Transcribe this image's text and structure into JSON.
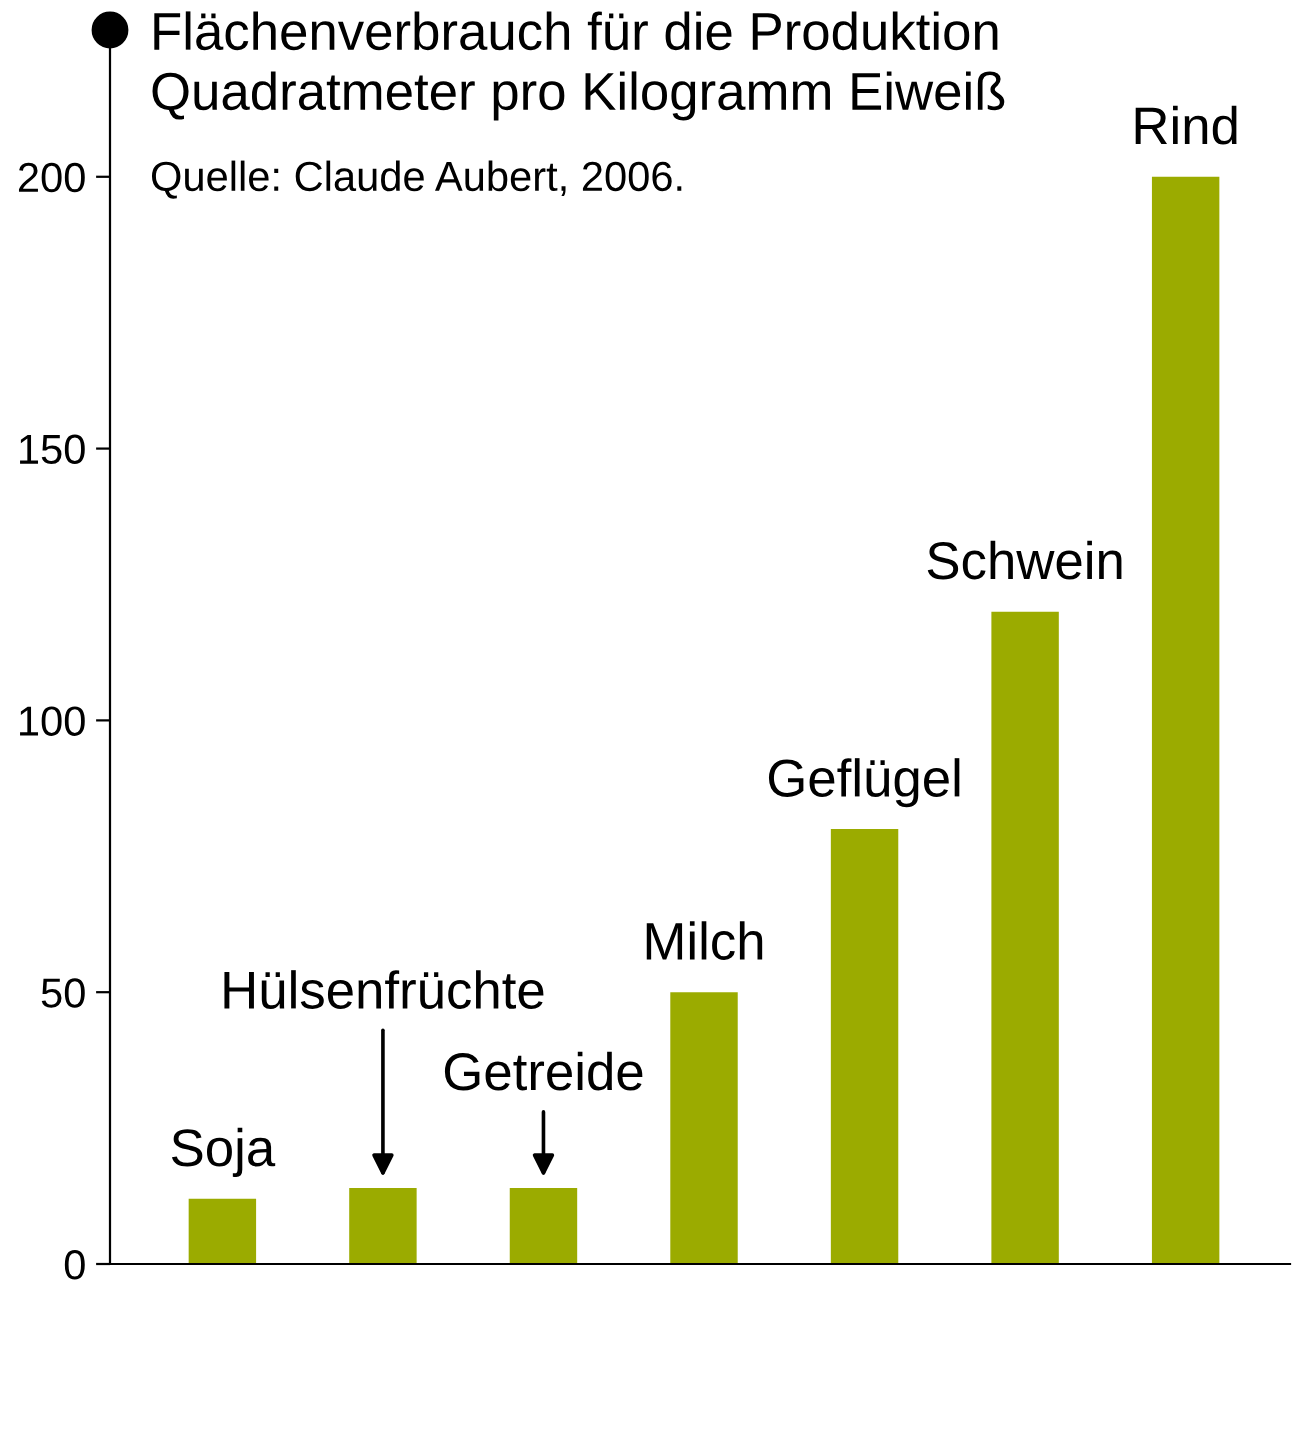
{
  "chart_data": {
    "type": "bar",
    "title": "Flächenverbrauch für die Produktion",
    "subtitle": "Quadratmeter pro Kilogramm Eiweiß",
    "annotations": [
      "Quelle: Claude Aubert, 2006."
    ],
    "categories": [
      "Soja",
      "Hülsenfrüchte",
      "Getreide",
      "Milch",
      "Geflügel",
      "Schwein",
      "Rind"
    ],
    "values": [
      12,
      14,
      14,
      50,
      80,
      120,
      200
    ],
    "color": "#9bab00",
    "ylim": [
      0,
      227
    ],
    "yticks": [
      0,
      50,
      100,
      150,
      200
    ],
    "grid": false
  }
}
